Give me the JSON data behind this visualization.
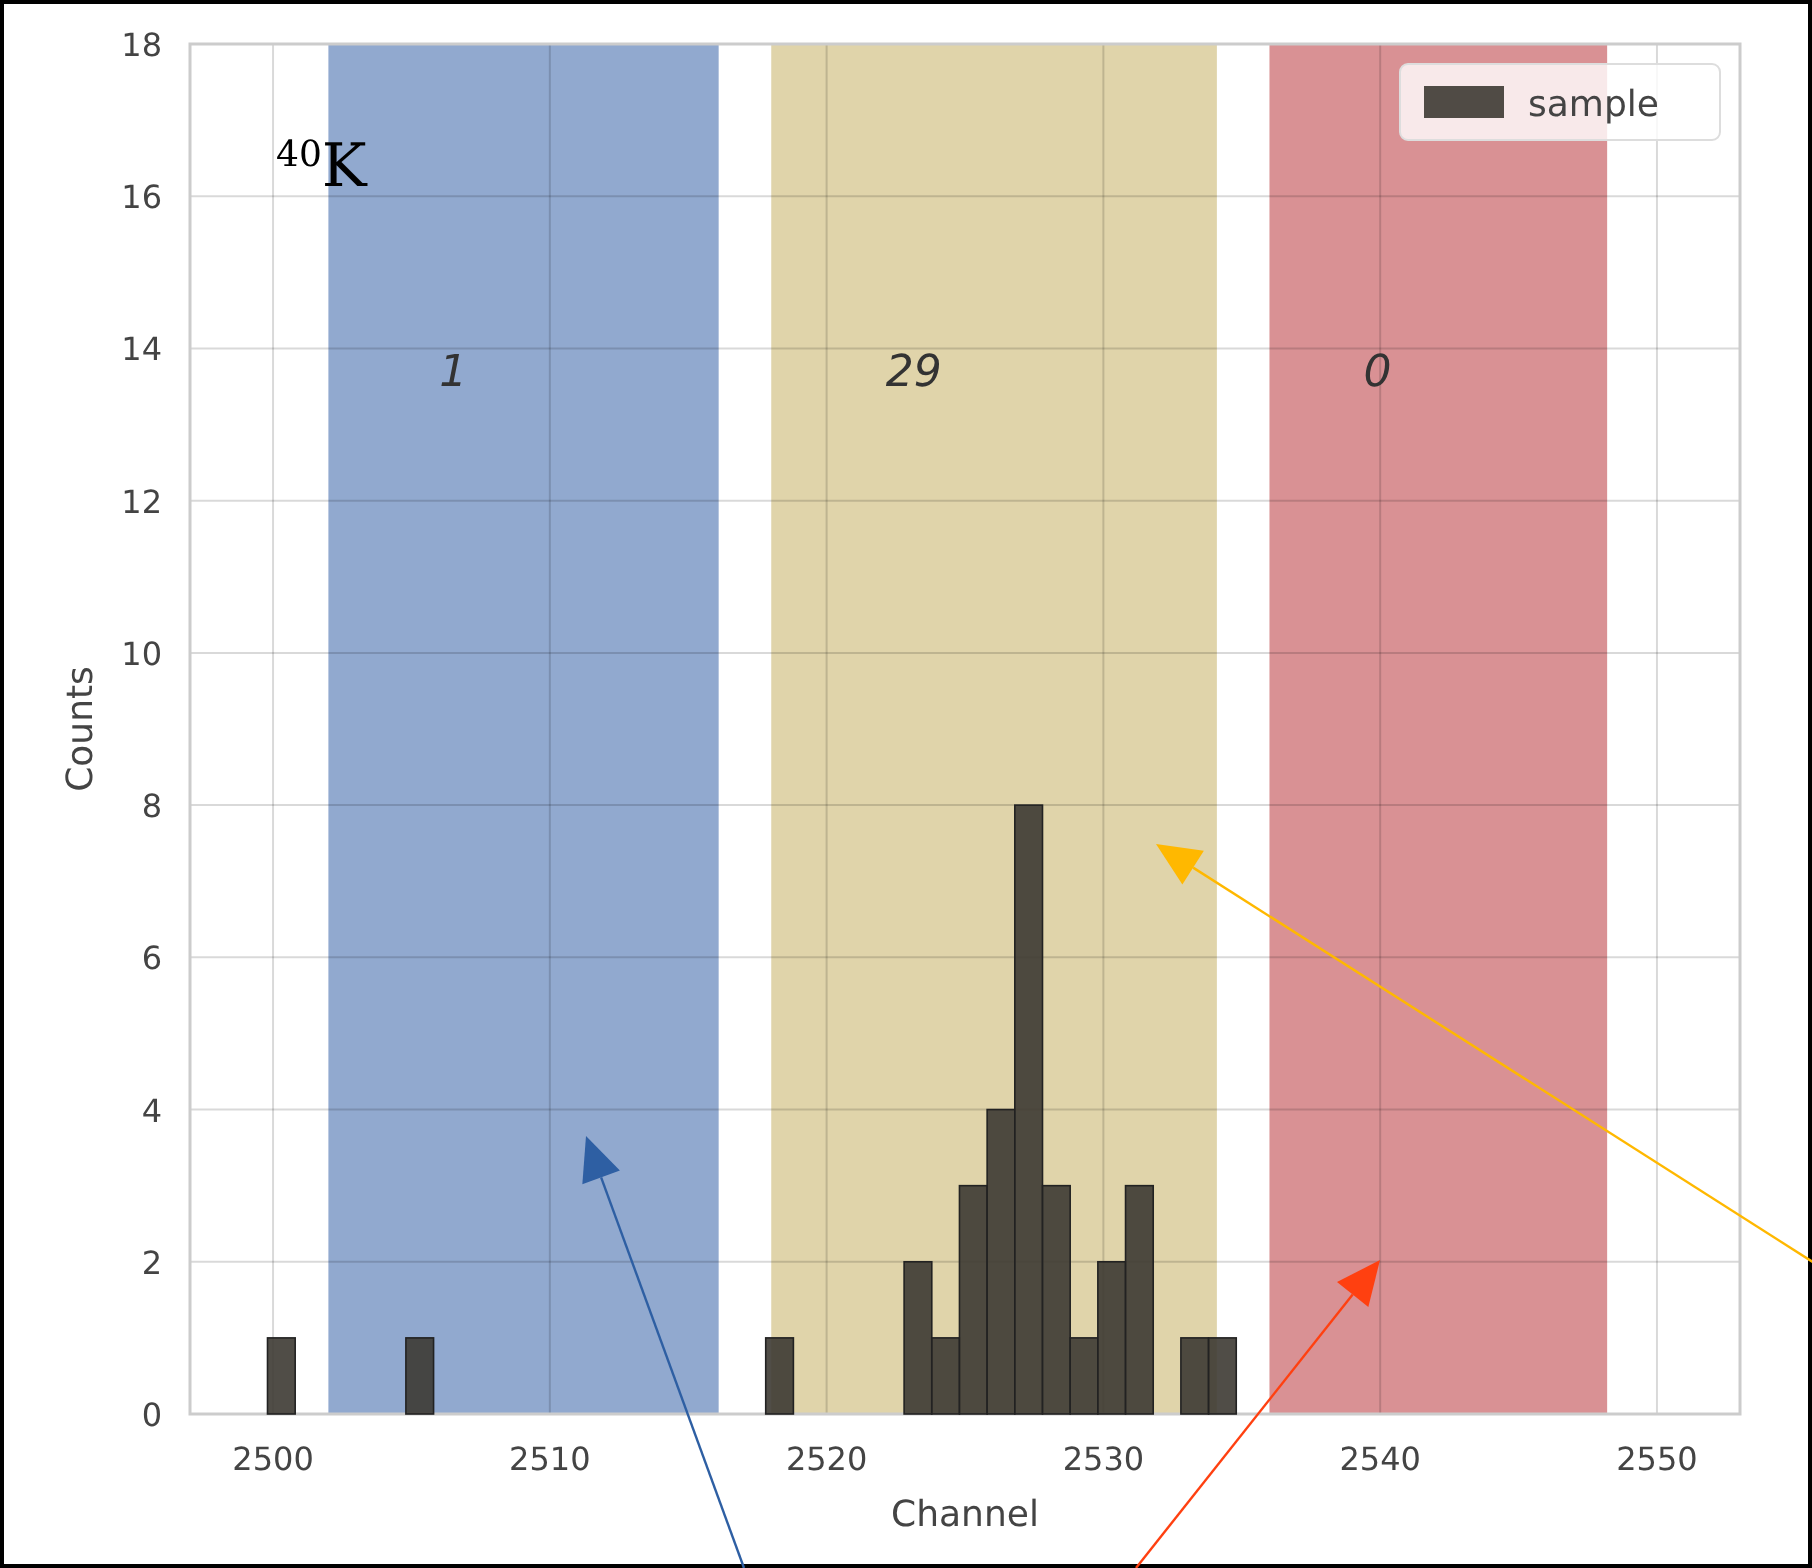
{
  "chart_data": {
    "type": "histogram",
    "xlabel": "Channel",
    "ylabel": "Counts",
    "bins": [
      2499.8,
      2500.8,
      2501.8,
      2502.8,
      2503.8,
      2504.8,
      2505.8,
      2506.8,
      2507.8,
      2508.8,
      2509.8,
      2510.8,
      2511.8,
      2512.8,
      2513.8,
      2514.8,
      2515.8,
      2516.8,
      2517.8,
      2518.8,
      2519.8,
      2520.8,
      2521.8,
      2522.8,
      2523.8,
      2524.8,
      2525.8,
      2526.8,
      2527.8,
      2528.8,
      2529.8,
      2530.8,
      2531.8,
      2532.8,
      2533.8,
      2534.8
    ],
    "series": [
      {
        "name": "sample",
        "color": "#3d3a33",
        "values": [
          1,
          0,
          0,
          0,
          0,
          1,
          0,
          0,
          0,
          0,
          0,
          0,
          0,
          0,
          0,
          0,
          0,
          0,
          1,
          0,
          0,
          0,
          0,
          2,
          1,
          3,
          4,
          8,
          3,
          1,
          2,
          3,
          0,
          1,
          1
        ]
      }
    ],
    "xlim": [
      2497,
      2553
    ],
    "xticks": [
      2500,
      2510,
      2520,
      2530,
      2540,
      2550
    ],
    "ylim": [
      0,
      18
    ],
    "yticks": [
      0,
      2,
      4,
      6,
      8,
      10,
      12,
      14,
      16,
      18
    ],
    "bands": [
      {
        "axis": "x",
        "from": 2502,
        "to": 2516.1,
        "color": "#91a9cf",
        "label": "1"
      },
      {
        "axis": "x",
        "from": 2518,
        "to": 2534.1,
        "color": "#e0d4aa",
        "label": "29"
      },
      {
        "axis": "x",
        "from": 2536,
        "to": 2548.2,
        "color": "#d99194",
        "label": "0"
      }
    ],
    "annotations": [
      "$^{40}$K"
    ],
    "grid": true,
    "legend": "top right"
  }
}
